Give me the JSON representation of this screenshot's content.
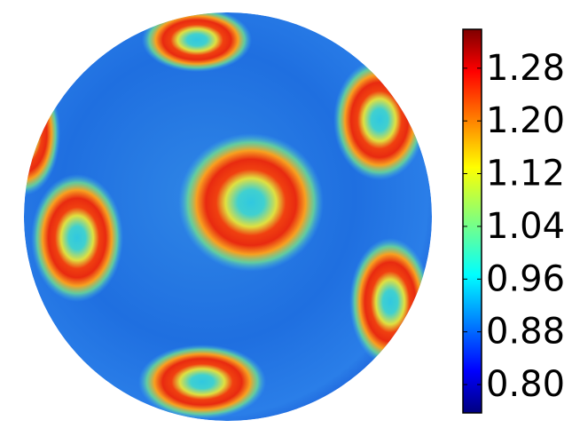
{
  "chart_data": {
    "type": "sphere",
    "colormap": "jet",
    "clim": [
      0.757,
      1.339
    ],
    "cticks": [
      {
        "value": 0.8,
        "label": "0.80"
      },
      0.88,
      0.96,
      1.04,
      1.12,
      {
        "value": 1.2,
        "label": "1.20"
      },
      1.28
    ]
  }
}
